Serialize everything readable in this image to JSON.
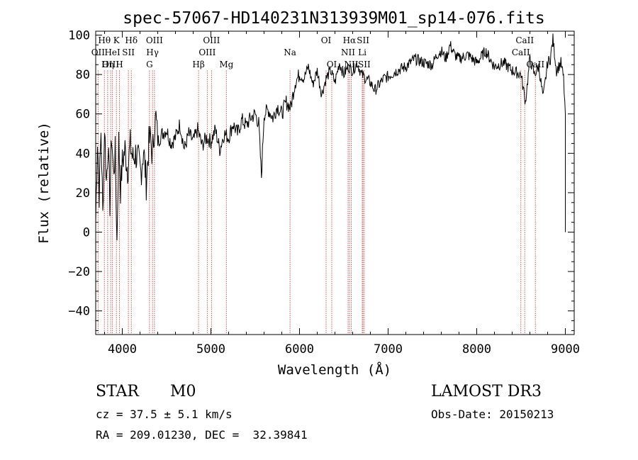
{
  "chart_data": {
    "type": "line",
    "title": "spec-57067-HD140231N313939M01_sp14-076.fits",
    "xlabel": "Wavelength (Å)",
    "ylabel": "Flux (relative)",
    "xlim": [
      3700,
      9100
    ],
    "ylim": [
      -52,
      102
    ],
    "xticks": [
      4000,
      5000,
      6000,
      7000,
      8000,
      9000
    ],
    "yticks": [
      -40,
      -20,
      0,
      20,
      40,
      60,
      80,
      100
    ],
    "series": [
      {
        "name": "flux",
        "x": [
          3700,
          3720,
          3740,
          3760,
          3780,
          3800,
          3820,
          3840,
          3860,
          3880,
          3900,
          3920,
          3940,
          3960,
          3980,
          4000,
          4030,
          4060,
          4090,
          4120,
          4150,
          4180,
          4210,
          4240,
          4270,
          4300,
          4320,
          4340,
          4360,
          4380,
          4400,
          4450,
          4500,
          4550,
          4600,
          4650,
          4700,
          4750,
          4800,
          4850,
          4900,
          4950,
          5000,
          5050,
          5100,
          5150,
          5200,
          5250,
          5300,
          5350,
          5400,
          5450,
          5500,
          5540,
          5570,
          5600,
          5650,
          5700,
          5750,
          5800,
          5850,
          5900,
          5950,
          6000,
          6050,
          6100,
          6150,
          6200,
          6250,
          6300,
          6350,
          6400,
          6450,
          6500,
          6550,
          6600,
          6650,
          6700,
          6750,
          6800,
          6850,
          6900,
          6950,
          7000,
          7100,
          7200,
          7300,
          7400,
          7500,
          7550,
          7600,
          7650,
          7700,
          7750,
          7800,
          7900,
          8000,
          8100,
          8200,
          8300,
          8400,
          8500,
          8550,
          8600,
          8650,
          8700,
          8750,
          8800,
          8830,
          8860,
          8900,
          8950,
          8980,
          9000
        ],
        "y": [
          5,
          48,
          20,
          52,
          8,
          55,
          25,
          45,
          15,
          50,
          30,
          40,
          -5,
          46,
          22,
          35,
          42,
          32,
          44,
          37,
          40,
          36,
          30,
          42,
          25,
          45,
          48,
          38,
          52,
          58,
          46,
          50,
          52,
          45,
          48,
          55,
          42,
          50,
          46,
          52,
          44,
          48,
          46,
          52,
          42,
          50,
          48,
          55,
          50,
          57,
          54,
          58,
          60,
          55,
          28,
          60,
          62,
          58,
          64,
          60,
          66,
          63,
          76,
          80,
          78,
          84,
          75,
          82,
          70,
          78,
          82,
          76,
          86,
          80,
          84,
          82,
          86,
          80,
          78,
          76,
          72,
          75,
          78,
          79,
          82,
          84,
          88,
          86,
          85,
          90,
          92,
          88,
          95,
          90,
          88,
          90,
          86,
          92,
          84,
          86,
          82,
          80,
          66,
          88,
          80,
          84,
          68,
          86,
          88,
          98,
          82,
          86,
          78,
          60
        ],
        "color": "#000000"
      }
    ],
    "lines": [
      {
        "name": "Hθ",
        "wavelength": 3798,
        "row": 1
      },
      {
        "name": "OII",
        "wavelength": 3727,
        "row": 2
      },
      {
        "name": "OIII",
        "wavelength": 3869,
        "row": 3
      },
      {
        "name": "K",
        "wavelength": 3934,
        "row": 1
      },
      {
        "name": "HeI",
        "wavelength": 3889,
        "row": 2
      },
      {
        "name": "Hη",
        "wavelength": 3835,
        "row": 3
      },
      {
        "name": "SII",
        "wavelength": 4069,
        "row": 2
      },
      {
        "name": "H",
        "wavelength": 3968,
        "row": 3
      },
      {
        "name": "Hδ",
        "wavelength": 4102,
        "row": 1
      },
      {
        "name": "OIII",
        "wavelength": 4363,
        "row": 1
      },
      {
        "name": "Hγ",
        "wavelength": 4341,
        "row": 2
      },
      {
        "name": "G",
        "wavelength": 4307,
        "row": 3
      },
      {
        "name": "Hβ",
        "wavelength": 4861,
        "row": 3
      },
      {
        "name": "OIII",
        "wavelength": 5007,
        "row": 1
      },
      {
        "name": "OIII",
        "wavelength": 4959,
        "row": 2
      },
      {
        "name": "Mg",
        "wavelength": 5175,
        "row": 3
      },
      {
        "name": "Na",
        "wavelength": 5893,
        "row": 2
      },
      {
        "name": "OI",
        "wavelength": 6300,
        "row": 1
      },
      {
        "name": "OI",
        "wavelength": 6364,
        "row": 3
      },
      {
        "name": "Hα",
        "wavelength": 6563,
        "row": 1
      },
      {
        "name": "NII",
        "wavelength": 6548,
        "row": 2
      },
      {
        "name": "NII",
        "wavelength": 6584,
        "row": 3
      },
      {
        "name": "SII",
        "wavelength": 6717,
        "row": 1
      },
      {
        "name": "Li",
        "wavelength": 6708,
        "row": 2
      },
      {
        "name": "SII",
        "wavelength": 6731,
        "row": 3
      },
      {
        "name": "CaII",
        "wavelength": 8542,
        "row": 1
      },
      {
        "name": "CaII",
        "wavelength": 8498,
        "row": 2
      },
      {
        "name": "CaII",
        "wavelength": 8662,
        "row": 3
      }
    ],
    "grid": false,
    "line_marker_color": "#c00000"
  },
  "info": {
    "class": "STAR",
    "subclass": "M0",
    "survey": "LAMOST DR3",
    "cz": "cz = 37.5 ± 5.1 km/s",
    "obs_date": "Obs-Date: 20150213",
    "coords": "RA = 209.01230, DEC =  32.39841"
  }
}
